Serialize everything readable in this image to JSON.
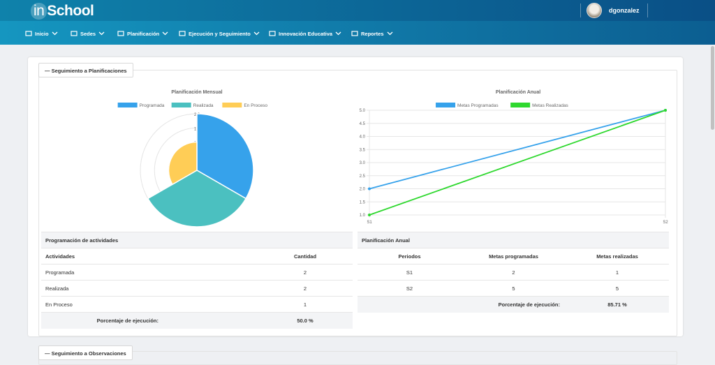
{
  "header": {
    "logo_in": "in",
    "logo_rest": "School",
    "user": "dgonzalez"
  },
  "nav": [
    "Inicio",
    "Sedes",
    "Planificación",
    "Ejecución y Seguimiento",
    "Innovación Educativa",
    "Reportes"
  ],
  "sections": [
    "Seguimiento a Planificaciones",
    "Seguimiento a Observaciones"
  ],
  "chart_data": [
    {
      "type": "polarArea",
      "title": "Planificación Mensual",
      "categories": [
        "Programada",
        "Realizada",
        "En Proceso"
      ],
      "values": [
        2,
        2,
        1
      ],
      "colors": [
        "#36a2eb",
        "#4bc0c0",
        "#ffcd56"
      ],
      "rlim": [
        0,
        2
      ],
      "rticks": [
        {
          "value": 0.5,
          "label": "0.5"
        },
        {
          "value": 1,
          "label": "1.0"
        },
        {
          "value": 1.5,
          "label": "1.5"
        },
        {
          "value": 2,
          "label": "2.0"
        }
      ]
    },
    {
      "type": "line",
      "title": "Planificación Anual",
      "categories": [
        "S1",
        "S2"
      ],
      "series": [
        {
          "name": "Metas Programadas",
          "color": "#36a2eb",
          "values": [
            2,
            5
          ]
        },
        {
          "name": "Metas Realizadas",
          "color": "#2ed82e",
          "values": [
            1,
            5
          ]
        }
      ],
      "ylim": [
        1,
        5
      ],
      "yticks": [
        {
          "value": 1,
          "label": "1.0"
        },
        {
          "value": 1.5,
          "label": "1.5"
        },
        {
          "value": 2,
          "label": "2.0"
        },
        {
          "value": 2.5,
          "label": "2.5"
        },
        {
          "value": 3,
          "label": "3.0"
        },
        {
          "value": 3.5,
          "label": "3.5"
        },
        {
          "value": 4,
          "label": "4.0"
        },
        {
          "value": 4.5,
          "label": "4.5"
        },
        {
          "value": 5,
          "label": "5.0"
        }
      ],
      "grid": true
    }
  ],
  "tables": [
    {
      "title": "Programación de actividades",
      "headers": [
        "Actividades",
        "Cantidad"
      ],
      "rows": [
        [
          "Programada",
          2
        ],
        [
          "Realizada",
          2
        ],
        [
          "En Proceso",
          1
        ]
      ],
      "footer": [
        "Porcentaje de ejecución:",
        "50.0 %"
      ]
    },
    {
      "title": "Planificación Anual",
      "headers": [
        "Periodos",
        "Metas programadas",
        "Metas realizadas"
      ],
      "rows": [
        [
          "S1",
          2,
          1
        ],
        [
          "S2",
          5,
          5
        ]
      ],
      "footer": [
        "Porcentaje de ejecución:",
        "85.71 %"
      ]
    }
  ]
}
